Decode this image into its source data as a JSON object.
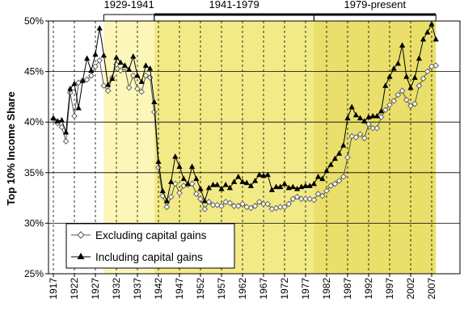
{
  "chart_data": {
    "type": "line",
    "ylabel": "Top 10% Income Share",
    "xlabel": "",
    "title": "",
    "ylim": [
      25,
      50
    ],
    "xlim": [
      1917,
      2008
    ],
    "yticks": [
      25,
      30,
      35,
      40,
      45,
      50
    ],
    "ytick_labels": [
      "25%",
      "30%",
      "35%",
      "40%",
      "45%",
      "50%"
    ],
    "xticks": [
      1917,
      1922,
      1927,
      1932,
      1937,
      1942,
      1947,
      1952,
      1957,
      1962,
      1967,
      1972,
      1977,
      1982,
      1987,
      1992,
      1997,
      2002,
      2007
    ],
    "xtick_labels": [
      "1917",
      "1922",
      "1927",
      "1932",
      "1937",
      "1942",
      "1947",
      "1952",
      "1957",
      "1962",
      "1967",
      "1972",
      "1977",
      "1982",
      "1987",
      "1992",
      "1997",
      "2002",
      "2007"
    ],
    "periods": [
      {
        "label": "1929-1941",
        "start": 1929,
        "end": 1941,
        "shade": "#fcf7b8"
      },
      {
        "label": "1941-1979",
        "start": 1941,
        "end": 1979,
        "shade": "#f2ea86"
      },
      {
        "label": "1979-present",
        "start": 1979,
        "end": 2008,
        "shade": "#e9df6a"
      }
    ],
    "grid": true,
    "legend_position": "bottom-left",
    "x": [
      1917,
      1918,
      1919,
      1920,
      1921,
      1922,
      1923,
      1924,
      1925,
      1926,
      1927,
      1928,
      1929,
      1930,
      1931,
      1932,
      1933,
      1934,
      1935,
      1936,
      1937,
      1938,
      1939,
      1940,
      1941,
      1942,
      1943,
      1944,
      1945,
      1946,
      1947,
      1948,
      1949,
      1950,
      1951,
      1952,
      1953,
      1954,
      1955,
      1956,
      1957,
      1958,
      1959,
      1960,
      1961,
      1962,
      1963,
      1964,
      1965,
      1966,
      1967,
      1968,
      1969,
      1970,
      1971,
      1972,
      1973,
      1974,
      1975,
      1976,
      1977,
      1978,
      1979,
      1980,
      1981,
      1982,
      1983,
      1984,
      1985,
      1986,
      1987,
      1988,
      1989,
      1990,
      1991,
      1992,
      1993,
      1994,
      1995,
      1996,
      1997,
      1998,
      1999,
      2000,
      2001,
      2002,
      2003,
      2004,
      2005,
      2006,
      2007,
      2008
    ],
    "series": [
      {
        "name": "Excluding capital gains",
        "marker": "diamond-open",
        "color": "#555555",
        "values": [
          40.3,
          39.9,
          39.5,
          38.1,
          42.9,
          40.6,
          43.9,
          44.1,
          44.2,
          44.6,
          45.5,
          46.1,
          43.6,
          43.1,
          44.4,
          45.7,
          45.1,
          45.4,
          43.4,
          44.6,
          43.3,
          43.0,
          44.6,
          44.4,
          41.0,
          35.5,
          32.7,
          31.6,
          32.6,
          33.9,
          33.0,
          33.7,
          33.8,
          33.9,
          32.9,
          32.4,
          31.4,
          32.1,
          31.8,
          31.8,
          31.7,
          32.1,
          32.0,
          31.7,
          31.7,
          31.9,
          31.6,
          31.5,
          31.7,
          32.1,
          31.9,
          31.9,
          31.4,
          31.5,
          31.6,
          31.6,
          31.9,
          32.4,
          32.6,
          32.4,
          32.4,
          32.4,
          32.3,
          32.9,
          32.7,
          33.2,
          33.7,
          33.9,
          34.2,
          34.6,
          36.5,
          38.6,
          38.5,
          38.8,
          38.4,
          39.8,
          39.4,
          39.4,
          40.5,
          41.2,
          41.7,
          42.1,
          42.7,
          43.1,
          42.2,
          41.6,
          41.8,
          43.6,
          44.3,
          45.0,
          45.5,
          45.6
        ]
      },
      {
        "name": "Including capital gains",
        "marker": "triangle-filled",
        "color": "#000000",
        "values": [
          40.4,
          40.1,
          40.2,
          39.0,
          43.3,
          43.8,
          41.4,
          44.1,
          46.3,
          45.1,
          46.7,
          49.3,
          46.6,
          43.7,
          44.3,
          46.4,
          45.9,
          45.6,
          45.2,
          46.5,
          44.6,
          44.0,
          45.6,
          45.3,
          42.0,
          36.1,
          33.2,
          32.2,
          34.1,
          36.6,
          35.6,
          34.4,
          33.9,
          35.6,
          34.4,
          33.4,
          32.2,
          33.5,
          33.8,
          33.8,
          33.4,
          33.8,
          33.5,
          34.1,
          34.6,
          34.1,
          34.0,
          33.7,
          34.2,
          34.8,
          34.7,
          34.8,
          33.3,
          33.6,
          33.6,
          33.9,
          33.5,
          33.6,
          33.4,
          33.6,
          33.7,
          33.7,
          33.9,
          34.6,
          34.4,
          35.2,
          35.8,
          36.4,
          36.9,
          37.7,
          40.4,
          41.5,
          40.7,
          40.4,
          40.1,
          40.5,
          40.6,
          40.6,
          41.1,
          43.6,
          44.5,
          45.3,
          45.8,
          47.6,
          44.5,
          43.4,
          44.4,
          46.3,
          48.2,
          48.9,
          49.7,
          48.2
        ]
      }
    ]
  }
}
